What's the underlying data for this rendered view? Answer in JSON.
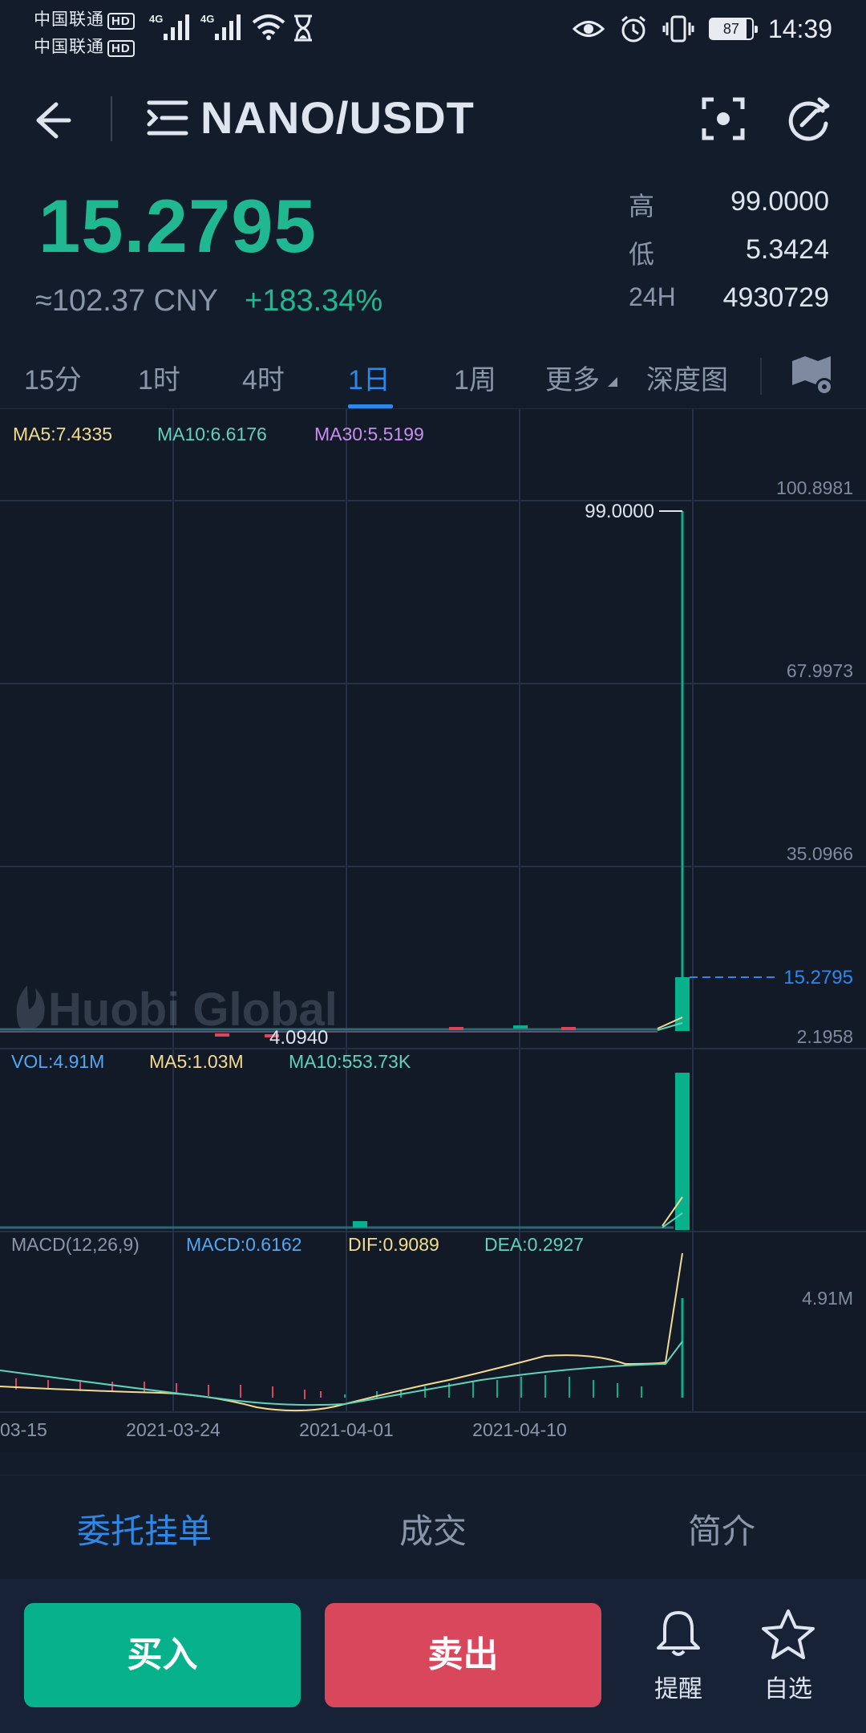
{
  "status_bar": {
    "carrier_1": "中国联通",
    "carrier_2": "中国联通",
    "hd_badge": "HD",
    "network_1": "4G",
    "network_2": "4G",
    "battery": "87",
    "time": "14:39"
  },
  "header": {
    "pair": "NANO/USDT"
  },
  "price": {
    "last": "15.2795",
    "cny": "≈102.37 CNY",
    "change": "+183.34%",
    "high_label": "高",
    "high": "99.0000",
    "low_label": "低",
    "low": "5.3424",
    "volume_label": "24H",
    "volume": "4930729"
  },
  "interval_tabs": [
    {
      "label": "15分"
    },
    {
      "label": "1时"
    },
    {
      "label": "4时"
    },
    {
      "label": "1日",
      "active": true
    },
    {
      "label": "1周"
    },
    {
      "label": "更多"
    },
    {
      "label": "深度图"
    }
  ],
  "chart": {
    "watermark": "Huobi Global",
    "ma": {
      "ma5": "MA5:7.4335",
      "ma10": "MA10:6.6176",
      "ma30": "MA30:5.5199"
    },
    "vol": {
      "vol": "VOL:4.91M",
      "ma5": "MA5:1.03M",
      "ma10": "MA10:553.73K",
      "axis_max": "4.91M"
    },
    "macd": {
      "title": "MACD(12,26,9)",
      "macd": "MACD:0.6162",
      "dif": "DIF:0.9089",
      "dea": "DEA:0.2927"
    },
    "colors": {
      "up": "#07b18b",
      "down": "#d9475d",
      "ma5": "#f3dc8e",
      "ma10": "#5fd3b9",
      "ma30": "#c98df0",
      "vol": "#53a7f0"
    }
  },
  "chart_data": {
    "type": "candlestick",
    "price_axis": [
      "100.8981",
      "67.9973",
      "35.0966",
      "2.1958"
    ],
    "high_marker": "99.0000",
    "low_marker": "4.0940",
    "last_price_marker": "15.2795",
    "x_ticks": [
      "03-15",
      "2021-03-24",
      "2021-04-01",
      "2021-04-10"
    ],
    "last_candle": {
      "open": 5.4,
      "high": 99.0,
      "low": 5.3424,
      "close": 15.2795
    },
    "last_volume": 4.91
  },
  "bottom_tabs": [
    {
      "label": "委托挂单",
      "active": true
    },
    {
      "label": "成交"
    },
    {
      "label": "简介"
    }
  ],
  "actions": {
    "buy": "买入",
    "sell": "卖出",
    "alert": "提醒",
    "favorite": "自选"
  }
}
